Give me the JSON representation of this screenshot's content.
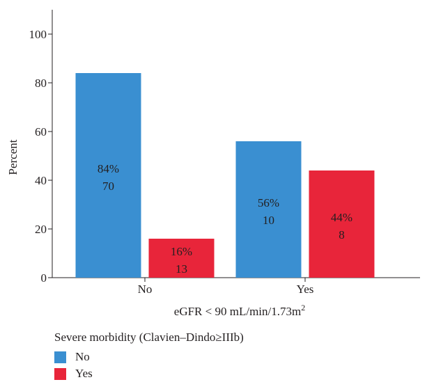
{
  "chart_data": {
    "type": "bar",
    "categories": [
      "No",
      "Yes"
    ],
    "series": [
      {
        "name": "No",
        "values": [
          84,
          56
        ],
        "counts": [
          70,
          10
        ],
        "labels": [
          "84%",
          "56%"
        ],
        "color": "#3a8fd1"
      },
      {
        "name": "Yes",
        "values": [
          16,
          44
        ],
        "counts": [
          13,
          8
        ],
        "labels": [
          "16%",
          "44%"
        ],
        "color": "#e8253a"
      }
    ],
    "xlabel": "eGFR < 90 mL/min/1.73m",
    "xlabel_sup": "2",
    "ylabel": "Percent",
    "ylim": [
      0,
      110
    ],
    "yticks": [
      0,
      20,
      40,
      60,
      80,
      100
    ],
    "grid": false,
    "legend": {
      "title": "Severe morbidity (Clavien–Dindo≥IIIb)",
      "placement": "bottom-left"
    }
  }
}
